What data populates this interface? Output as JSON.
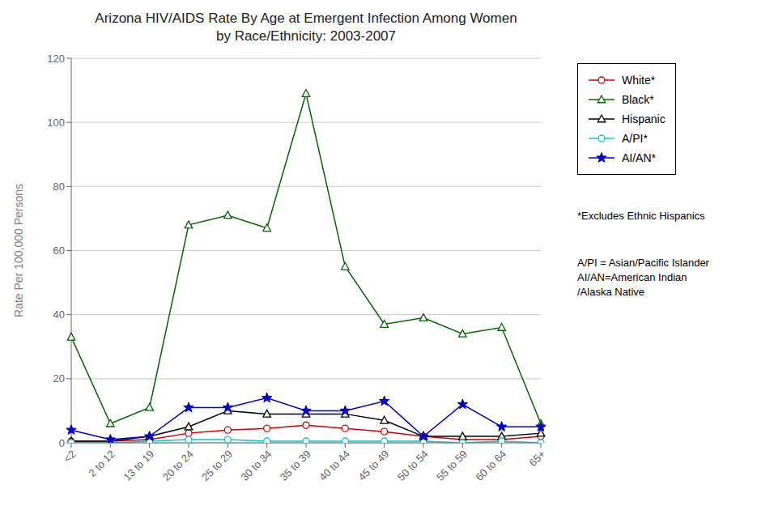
{
  "chart_data": {
    "type": "line",
    "title": "Arizona HIV/AIDS Rate By Age at Emergent Infection Among Women\nby Race/Ethnicity: 2003-2007",
    "ylabel": "Rate Per 100,000 Persons",
    "categories": [
      "<2",
      "2 to 12",
      "13 to 19",
      "20 to 24",
      "25 to 29",
      "30 to 34",
      "35 to 39",
      "40 to 44",
      "45 to 49",
      "50 to 54",
      "55 to 59",
      "60 to 64",
      "65+"
    ],
    "ylim": [
      0,
      120
    ],
    "yticks": [
      0,
      20,
      40,
      60,
      80,
      100,
      120
    ],
    "grid": true,
    "legend": "right",
    "series": [
      {
        "name": "White*",
        "color": "#cc0000",
        "marker": "circle",
        "values": [
          0.5,
          0.5,
          1.0,
          3.0,
          4.0,
          4.5,
          5.5,
          4.5,
          3.5,
          2.0,
          1.0,
          1.0,
          2.0
        ]
      },
      {
        "name": "Black*",
        "color": "#006600",
        "marker": "triangle",
        "values": [
          33.0,
          6.0,
          11.0,
          68.0,
          71.0,
          67.0,
          109.0,
          55.0,
          37.0,
          39.0,
          34.0,
          36.0,
          6.0
        ]
      },
      {
        "name": "Hispanic",
        "color": "#000000",
        "marker": "triangle",
        "values": [
          0.5,
          0.5,
          2.0,
          5.0,
          10.0,
          9.0,
          9.0,
          9.0,
          7.0,
          2.0,
          2.0,
          2.0,
          3.0
        ]
      },
      {
        "name": "A/PI*",
        "color": "#00cccc",
        "marker": "circle",
        "values": [
          0.0,
          0.0,
          0.5,
          1.0,
          1.0,
          0.5,
          0.5,
          0.5,
          0.5,
          0.5,
          0.0,
          0.5,
          0.0
        ]
      },
      {
        "name": "AI/AN*",
        "color": "#0000cc",
        "marker": "star",
        "values": [
          4.0,
          1.0,
          2.0,
          11.0,
          11.0,
          14.0,
          10.0,
          10.0,
          13.0,
          2.0,
          12.0,
          5.0,
          5.0
        ]
      }
    ],
    "annotations": [
      "*Excludes Ethnic Hispanics",
      "A/PI = Asian/Pacific Islander\nAI/AN=American Indian\n/Alaska Native"
    ]
  }
}
